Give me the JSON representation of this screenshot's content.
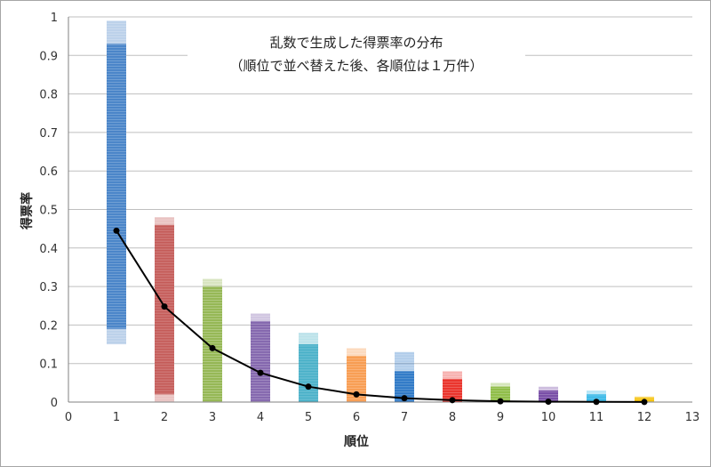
{
  "chart_data": {
    "type": "scatter",
    "title_lines": [
      "乱数で生成した得票率の分布",
      "（順位で並べ替えた後、各順位は１万件）"
    ],
    "xlabel": "順位",
    "ylabel": "得票率",
    "xlim": [
      0,
      13
    ],
    "ylim": [
      0,
      1
    ],
    "x_ticks": [
      "0",
      "1",
      "2",
      "3",
      "4",
      "5",
      "6",
      "7",
      "8",
      "9",
      "10",
      "11",
      "12",
      "13"
    ],
    "y_ticks": [
      "0",
      "0.1",
      "0.2",
      "0.3",
      "0.4",
      "0.5",
      "0.6",
      "0.7",
      "0.8",
      "0.9",
      "1"
    ],
    "grid": true,
    "distributions": [
      {
        "rank": 1,
        "min": 0.15,
        "max": 0.99,
        "core_min": 0.19,
        "core_max": 0.93,
        "color": "#3d7bc4"
      },
      {
        "rank": 2,
        "min": 0.0,
        "max": 0.48,
        "core_min": 0.02,
        "core_max": 0.46,
        "color": "#c0504d"
      },
      {
        "rank": 3,
        "min": 0.0,
        "max": 0.32,
        "core_min": 0.0,
        "core_max": 0.3,
        "color": "#8fb24a"
      },
      {
        "rank": 4,
        "min": 0.0,
        "max": 0.23,
        "core_min": 0.0,
        "core_max": 0.21,
        "color": "#7b5ca8"
      },
      {
        "rank": 5,
        "min": 0.0,
        "max": 0.18,
        "core_min": 0.0,
        "core_max": 0.15,
        "color": "#3cabc4"
      },
      {
        "rank": 6,
        "min": 0.0,
        "max": 0.14,
        "core_min": 0.0,
        "core_max": 0.12,
        "color": "#f79646"
      },
      {
        "rank": 7,
        "min": 0.0,
        "max": 0.13,
        "core_min": 0.0,
        "core_max": 0.08,
        "color": "#1f6fc2"
      },
      {
        "rank": 8,
        "min": 0.0,
        "max": 0.08,
        "core_min": 0.0,
        "core_max": 0.06,
        "color": "#e8231c"
      },
      {
        "rank": 9,
        "min": 0.0,
        "max": 0.05,
        "core_min": 0.0,
        "core_max": 0.04,
        "color": "#86b83a"
      },
      {
        "rank": 10,
        "min": 0.0,
        "max": 0.04,
        "core_min": 0.0,
        "core_max": 0.03,
        "color": "#6e3fa0"
      },
      {
        "rank": 11,
        "min": 0.0,
        "max": 0.03,
        "core_min": 0.0,
        "core_max": 0.02,
        "color": "#2ab3e6"
      },
      {
        "rank": 12,
        "min": 0.0,
        "max": 0.015,
        "core_min": 0.0,
        "core_max": 0.012,
        "color": "#f5c000"
      }
    ],
    "series": [
      {
        "type": "line",
        "color": "#000000",
        "x": [
          1,
          2,
          3,
          4,
          5,
          6,
          7,
          8,
          9,
          10,
          11,
          12
        ],
        "values": [
          0.445,
          0.248,
          0.14,
          0.076,
          0.04,
          0.02,
          0.01,
          0.005,
          0.002,
          0.001,
          0.0006,
          0.0002
        ]
      }
    ]
  }
}
